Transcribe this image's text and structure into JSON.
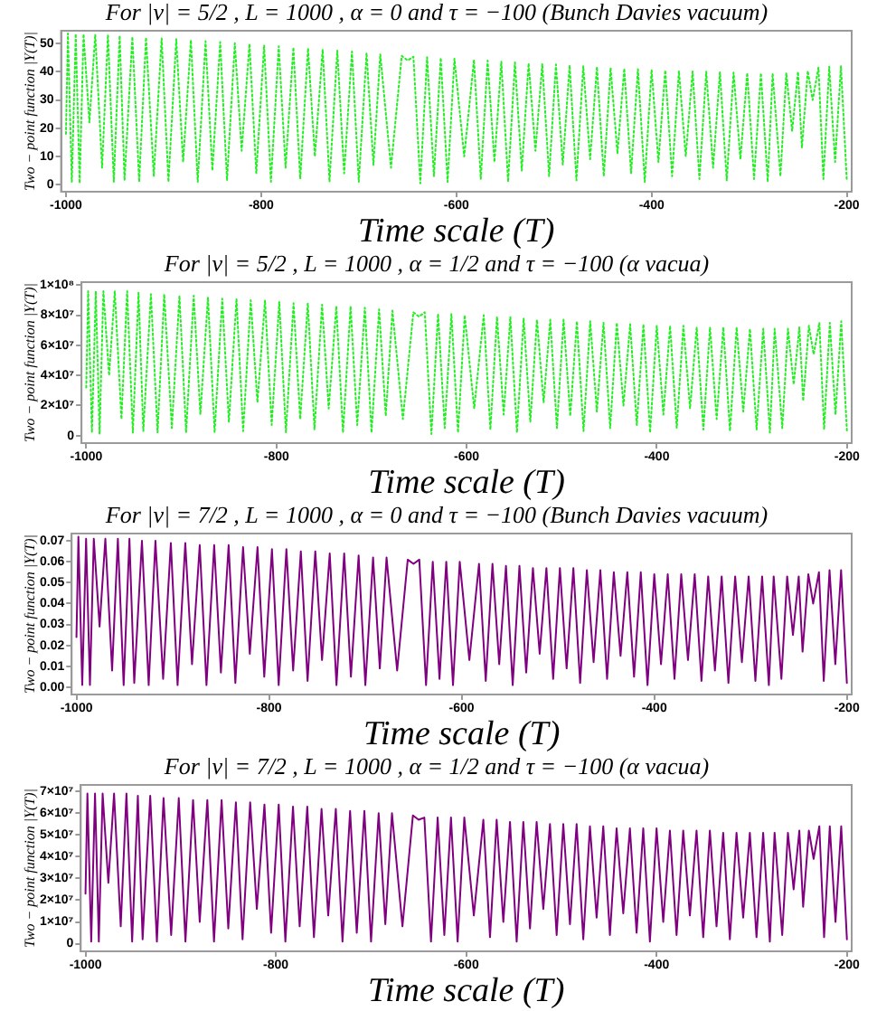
{
  "chart_data": [
    {
      "type": "line",
      "title": "For |ν| = 5/2 , L = 1000 , α = 0 and τ = −100 (Bunch Davies vacuum)",
      "xlabel": "Time scale (T)",
      "ylabel": "Two − point function |Y(T)|",
      "color": "#22ee22",
      "line_style": "dotted",
      "xlim": [
        -1005,
        -195
      ],
      "xticks": [
        -1000,
        -800,
        -600,
        -400,
        -200
      ],
      "ylim": [
        -2.5,
        54.5
      ],
      "yticks": [
        0,
        10,
        20,
        30,
        40,
        50
      ],
      "x": [
        -1000,
        -998,
        -994,
        -990,
        -986,
        -982,
        -976,
        -970,
        -963,
        -957,
        -951,
        -945,
        -940,
        -932,
        -925,
        -918,
        -910,
        -902,
        -895,
        -887,
        -880,
        -872,
        -865,
        -857,
        -850,
        -842,
        -835,
        -827,
        -820,
        -812,
        -805,
        -797,
        -790,
        -782,
        -775,
        -767,
        -760,
        -752,
        -745,
        -737,
        -730,
        -722,
        -715,
        -707,
        -700,
        -692,
        -685,
        -678,
        -667,
        -656,
        -650,
        -644,
        -637,
        -630,
        -623,
        -616,
        -609,
        -602,
        -592,
        -582,
        -575,
        -568,
        -561,
        -554,
        -547,
        -540,
        -533,
        -526,
        -519,
        -512,
        -505,
        -498,
        -491,
        -484,
        -477,
        -470,
        -463,
        -456,
        -449,
        -442,
        -435,
        -428,
        -421,
        -414,
        -407,
        -400,
        -393,
        -386,
        -379,
        -372,
        -365,
        -358,
        -351,
        -344,
        -337,
        -330,
        -323,
        -316,
        -309,
        -302,
        -295,
        -288,
        -281,
        -276,
        -268,
        -262,
        -256,
        -250,
        -246,
        -240,
        -235,
        -229,
        -224,
        -218,
        -212,
        -206,
        -200
      ],
      "values": [
        18,
        53.5,
        1,
        53.4,
        0.5,
        53.3,
        22,
        53.2,
        6,
        53.1,
        1,
        52.8,
        1.5,
        52.4,
        1,
        52.1,
        3,
        51.8,
        1,
        51.5,
        8,
        51.2,
        1,
        50.8,
        5,
        50.5,
        1.5,
        50.1,
        12,
        49.8,
        4,
        49.4,
        1,
        49,
        6,
        48.6,
        2,
        48.3,
        10,
        47.9,
        1,
        47.5,
        4,
        47.1,
        1,
        46.7,
        7,
        46.2,
        6,
        45.6,
        44,
        45.3,
        0.5,
        45.1,
        3,
        44.9,
        1,
        44.6,
        10,
        44.2,
        2,
        43.9,
        8,
        43.6,
        1,
        43.3,
        5,
        43,
        12,
        42.8,
        3,
        42.6,
        7,
        42.3,
        1.5,
        42,
        9,
        41.7,
        3,
        41.4,
        11,
        41.1,
        4,
        40.9,
        1,
        40.7,
        8,
        40.5,
        3,
        40.3,
        10,
        40.1,
        2,
        40,
        6,
        39.8,
        1.5,
        39.7,
        9,
        39.6,
        2,
        39.5,
        1,
        39.4,
        3,
        39.6,
        19,
        40,
        13,
        40.3,
        30,
        41.5,
        2,
        41.8,
        8,
        42,
        1.5
      ]
    },
    {
      "type": "line",
      "title": "For |ν| = 5/2 , L = 1000 , α = 1/2 and τ = −100 (α vacua)",
      "xlabel": "Time scale (T)",
      "ylabel": "Two − point function |Y(T)|",
      "color": "#22ee22",
      "line_style": "dotted",
      "xlim": [
        -1005,
        -195
      ],
      "xticks": [
        -1000,
        -800,
        -600,
        -400,
        -200
      ],
      "ylim": [
        -5000000.0,
        102000000.0
      ],
      "yticks": [
        0,
        {
          "value": 20000000.0,
          "label": "2×10⁷"
        },
        {
          "value": 40000000.0,
          "label": "4×10⁷"
        },
        {
          "value": 60000000.0,
          "label": "6×10⁷"
        },
        {
          "value": 80000000.0,
          "label": "8×10⁷"
        },
        {
          "value": 100000000.0,
          "label": "1×10⁸"
        }
      ],
      "x": [
        -1000,
        -998,
        -994,
        -990,
        -986,
        -982,
        -976,
        -970,
        -963,
        -957,
        -951,
        -945,
        -940,
        -932,
        -925,
        -918,
        -910,
        -902,
        -895,
        -887,
        -880,
        -872,
        -865,
        -857,
        -850,
        -842,
        -835,
        -827,
        -820,
        -812,
        -805,
        -797,
        -790,
        -782,
        -775,
        -767,
        -760,
        -752,
        -745,
        -737,
        -730,
        -722,
        -715,
        -707,
        -700,
        -692,
        -685,
        -678,
        -667,
        -656,
        -650,
        -644,
        -637,
        -630,
        -623,
        -616,
        -609,
        -602,
        -592,
        -582,
        -575,
        -568,
        -561,
        -554,
        -547,
        -540,
        -533,
        -526,
        -519,
        -512,
        -505,
        -498,
        -491,
        -484,
        -477,
        -470,
        -463,
        -456,
        -449,
        -442,
        -435,
        -428,
        -421,
        -414,
        -407,
        -400,
        -393,
        -386,
        -379,
        -372,
        -365,
        -358,
        -351,
        -344,
        -337,
        -330,
        -323,
        -316,
        -309,
        -302,
        -295,
        -288,
        -281,
        -276,
        -268,
        -262,
        -256,
        -250,
        -246,
        -240,
        -235,
        -229,
        -224,
        -218,
        -212,
        -206,
        -200
      ],
      "values": [
        32000000.0,
        96000000.0,
        2000000.0,
        96000000.0,
        1000000.0,
        96000000.0,
        40000000.0,
        96000000.0,
        11000000.0,
        96000000.0,
        2000000.0,
        95000000.0,
        3000000.0,
        94000000.0,
        2000000.0,
        94000000.0,
        5000000.0,
        93000000.0,
        2000000.0,
        93000000.0,
        14000000.0,
        92000000.0,
        2000000.0,
        91000000.0,
        9000000.0,
        91000000.0,
        3000000.0,
        90000000.0,
        22000000.0,
        90000000.0,
        7000000.0,
        89000000.0,
        2000000.0,
        88000000.0,
        11000000.0,
        88000000.0,
        4000000.0,
        87000000.0,
        18000000.0,
        86000000.0,
        2000000.0,
        86000000.0,
        7000000.0,
        85000000.0,
        2000000.0,
        84000000.0,
        13000000.0,
        83000000.0,
        11000000.0,
        82000000.0,
        79000000.0,
        82000000.0,
        1000000.0,
        81000000.0,
        5000000.0,
        81000000.0,
        2000000.0,
        80000000.0,
        18000000.0,
        80000000.0,
        4000000.0,
        79000000.0,
        14000000.0,
        79000000.0,
        2000000.0,
        78000000.0,
        9000000.0,
        77000000.0,
        22000000.0,
        77000000.0,
        5000000.0,
        77000000.0,
        13000000.0,
        76000000.0,
        3000000.0,
        76000000.0,
        16000000.0,
        75000000.0,
        5000000.0,
        75000000.0,
        20000000.0,
        74000000.0,
        7000000.0,
        74000000.0,
        2000000.0,
        73000000.0,
        14000000.0,
        73000000.0,
        5000000.0,
        73000000.0,
        18000000.0,
        72000000.0,
        4000000.0,
        72000000.0,
        11000000.0,
        72000000.0,
        3000000.0,
        72000000.0,
        16000000.0,
        71000000.0,
        4000000.0,
        71000000.0,
        2000000.0,
        71000000.0,
        5000000.0,
        71000000.0,
        34000000.0,
        72000000.0,
        23000000.0,
        73000000.0,
        54000000.0,
        75000000.0,
        4000000.0,
        75000000.0,
        14000000.0,
        76000000.0,
        3000000.0
      ]
    },
    {
      "type": "line",
      "title": "For |ν| = 7/2 , L = 1000 , α = 0 and τ = −100 (Bunch Davies vacuum)",
      "xlabel": "Time scale (T)",
      "ylabel": "Two − point function |Y(T)|",
      "color": "#800080",
      "xlim": [
        -1005,
        -195
      ],
      "xticks": [
        -1000,
        -800,
        -600,
        -400,
        -200
      ],
      "ylim": [
        -0.0035,
        0.0735
      ],
      "yticks": [
        {
          "value": 0,
          "label": "0.00"
        },
        0.01,
        0.02,
        0.03,
        0.04,
        0.05,
        0.06,
        0.07
      ],
      "x": [
        -1000,
        -998,
        -994,
        -990,
        -986,
        -982,
        -976,
        -970,
        -963,
        -957,
        -951,
        -945,
        -940,
        -932,
        -925,
        -918,
        -910,
        -902,
        -895,
        -887,
        -880,
        -872,
        -865,
        -857,
        -850,
        -842,
        -835,
        -827,
        -820,
        -812,
        -805,
        -797,
        -790,
        -782,
        -775,
        -767,
        -760,
        -752,
        -745,
        -737,
        -730,
        -722,
        -715,
        -707,
        -700,
        -692,
        -685,
        -678,
        -667,
        -656,
        -650,
        -644,
        -637,
        -630,
        -623,
        -616,
        -609,
        -602,
        -592,
        -582,
        -575,
        -568,
        -561,
        -554,
        -547,
        -540,
        -533,
        -526,
        -519,
        -512,
        -505,
        -498,
        -491,
        -484,
        -477,
        -470,
        -463,
        -456,
        -449,
        -442,
        -435,
        -428,
        -421,
        -414,
        -407,
        -400,
        -393,
        -386,
        -379,
        -372,
        -365,
        -358,
        -351,
        -344,
        -337,
        -330,
        -323,
        -316,
        -309,
        -302,
        -295,
        -288,
        -281,
        -276,
        -268,
        -262,
        -256,
        -250,
        -246,
        -240,
        -235,
        -229,
        -224,
        -218,
        -212,
        -206,
        -200
      ],
      "values": [
        0.024,
        0.072,
        0.001,
        0.071,
        0.001,
        0.071,
        0.029,
        0.071,
        0.008,
        0.071,
        0.001,
        0.071,
        0.002,
        0.07,
        0.001,
        0.07,
        0.004,
        0.069,
        0.001,
        0.069,
        0.011,
        0.068,
        0.001,
        0.068,
        0.007,
        0.068,
        0.002,
        0.067,
        0.016,
        0.067,
        0.005,
        0.066,
        0.001,
        0.066,
        0.008,
        0.065,
        0.003,
        0.065,
        0.013,
        0.064,
        0.001,
        0.064,
        0.005,
        0.063,
        0.001,
        0.062,
        0.009,
        0.062,
        0.008,
        0.061,
        0.059,
        0.061,
        0.001,
        0.06,
        0.004,
        0.06,
        0.001,
        0.06,
        0.013,
        0.059,
        0.003,
        0.059,
        0.011,
        0.058,
        0.001,
        0.058,
        0.007,
        0.057,
        0.016,
        0.057,
        0.004,
        0.057,
        0.009,
        0.057,
        0.002,
        0.056,
        0.012,
        0.056,
        0.004,
        0.055,
        0.015,
        0.055,
        0.005,
        0.055,
        0.001,
        0.054,
        0.011,
        0.054,
        0.004,
        0.054,
        0.013,
        0.054,
        0.003,
        0.053,
        0.008,
        0.053,
        0.002,
        0.053,
        0.012,
        0.053,
        0.003,
        0.053,
        0.001,
        0.053,
        0.004,
        0.053,
        0.025,
        0.053,
        0.017,
        0.054,
        0.04,
        0.055,
        0.003,
        0.056,
        0.011,
        0.056,
        0.002
      ]
    },
    {
      "type": "line",
      "title": "For |ν| = 7/2 , L = 1000 , α = 1/2 and τ = −100 (α vacua)",
      "xlabel": "Time scale (T)",
      "ylabel": "Two − point function |Y(T)|",
      "color": "#800080",
      "xlim": [
        -1005,
        -195
      ],
      "xticks": [
        -1000,
        -800,
        -600,
        -400,
        -200
      ],
      "ylim": [
        -3500000.0,
        73000000.0
      ],
      "yticks": [
        0,
        {
          "value": 10000000.0,
          "label": "1×10⁷"
        },
        {
          "value": 20000000.0,
          "label": "2×10⁷"
        },
        {
          "value": 30000000.0,
          "label": "3×10⁷"
        },
        {
          "value": 40000000.0,
          "label": "4×10⁷"
        },
        {
          "value": 50000000.0,
          "label": "5×10⁷"
        },
        {
          "value": 60000000.0,
          "label": "6×10⁷"
        },
        {
          "value": 70000000.0,
          "label": "7×10⁷"
        }
      ],
      "x": [
        -1000,
        -998,
        -994,
        -990,
        -986,
        -982,
        -976,
        -970,
        -963,
        -957,
        -951,
        -945,
        -940,
        -932,
        -925,
        -918,
        -910,
        -902,
        -895,
        -887,
        -880,
        -872,
        -865,
        -857,
        -850,
        -842,
        -835,
        -827,
        -820,
        -812,
        -805,
        -797,
        -790,
        -782,
        -775,
        -767,
        -760,
        -752,
        -745,
        -737,
        -730,
        -722,
        -715,
        -707,
        -700,
        -692,
        -685,
        -678,
        -667,
        -656,
        -650,
        -644,
        -637,
        -630,
        -623,
        -616,
        -609,
        -602,
        -592,
        -582,
        -575,
        -568,
        -561,
        -554,
        -547,
        -540,
        -533,
        -526,
        -519,
        -512,
        -505,
        -498,
        -491,
        -484,
        -477,
        -470,
        -463,
        -456,
        -449,
        -442,
        -435,
        -428,
        -421,
        -414,
        -407,
        -400,
        -393,
        -386,
        -379,
        -372,
        -365,
        -358,
        -351,
        -344,
        -337,
        -330,
        -323,
        -316,
        -309,
        -302,
        -295,
        -288,
        -281,
        -276,
        -268,
        -262,
        -256,
        -250,
        -246,
        -240,
        -235,
        -229,
        -224,
        -218,
        -212,
        -206,
        -200
      ],
      "values": [
        23000000.0,
        69000000.0,
        1000000.0,
        69000000.0,
        1000000.0,
        69000000.0,
        28000000.0,
        69000000.0,
        8000000.0,
        69000000.0,
        1000000.0,
        68000000.0,
        2000000.0,
        68000000.0,
        1000000.0,
        67000000.0,
        4000000.0,
        67000000.0,
        1000000.0,
        66000000.0,
        10000000.0,
        66000000.0,
        1000000.0,
        66000000.0,
        7000000.0,
        65000000.0,
        2000000.0,
        65000000.0,
        16000000.0,
        64000000.0,
        5000000.0,
        64000000.0,
        1000000.0,
        63000000.0,
        8000000.0,
        63000000.0,
        3000000.0,
        62000000.0,
        13000000.0,
        62000000.0,
        1000000.0,
        61000000.0,
        5000000.0,
        61000000.0,
        1000000.0,
        60000000.0,
        9000000.0,
        60000000.0,
        8000000.0,
        59000000.0,
        57000000.0,
        58000000.0,
        1000000.0,
        58000000.0,
        4000000.0,
        58000000.0,
        1000000.0,
        58000000.0,
        13000000.0,
        57000000.0,
        3000000.0,
        57000000.0,
        10000000.0,
        56000000.0,
        1000000.0,
        56000000.0,
        7000000.0,
        56000000.0,
        16000000.0,
        55000000.0,
        4000000.0,
        55000000.0,
        9000000.0,
        55000000.0,
        2000000.0,
        54000000.0,
        12000000.0,
        54000000.0,
        4000000.0,
        53000000.0,
        14000000.0,
        53000000.0,
        5000000.0,
        53000000.0,
        1000000.0,
        53000000.0,
        10000000.0,
        52000000.0,
        4000000.0,
        52000000.0,
        13000000.0,
        52000000.0,
        3000000.0,
        52000000.0,
        8000000.0,
        51000000.0,
        2000000.0,
        51000000.0,
        12000000.0,
        51000000.0,
        3000000.0,
        51000000.0,
        1000000.0,
        51000000.0,
        4000000.0,
        51000000.0,
        25000000.0,
        52000000.0,
        17000000.0,
        52000000.0,
        39000000.0,
        54000000.0,
        3000000.0,
        54000000.0,
        10000000.0,
        54000000.0,
        2000000.0
      ]
    }
  ]
}
